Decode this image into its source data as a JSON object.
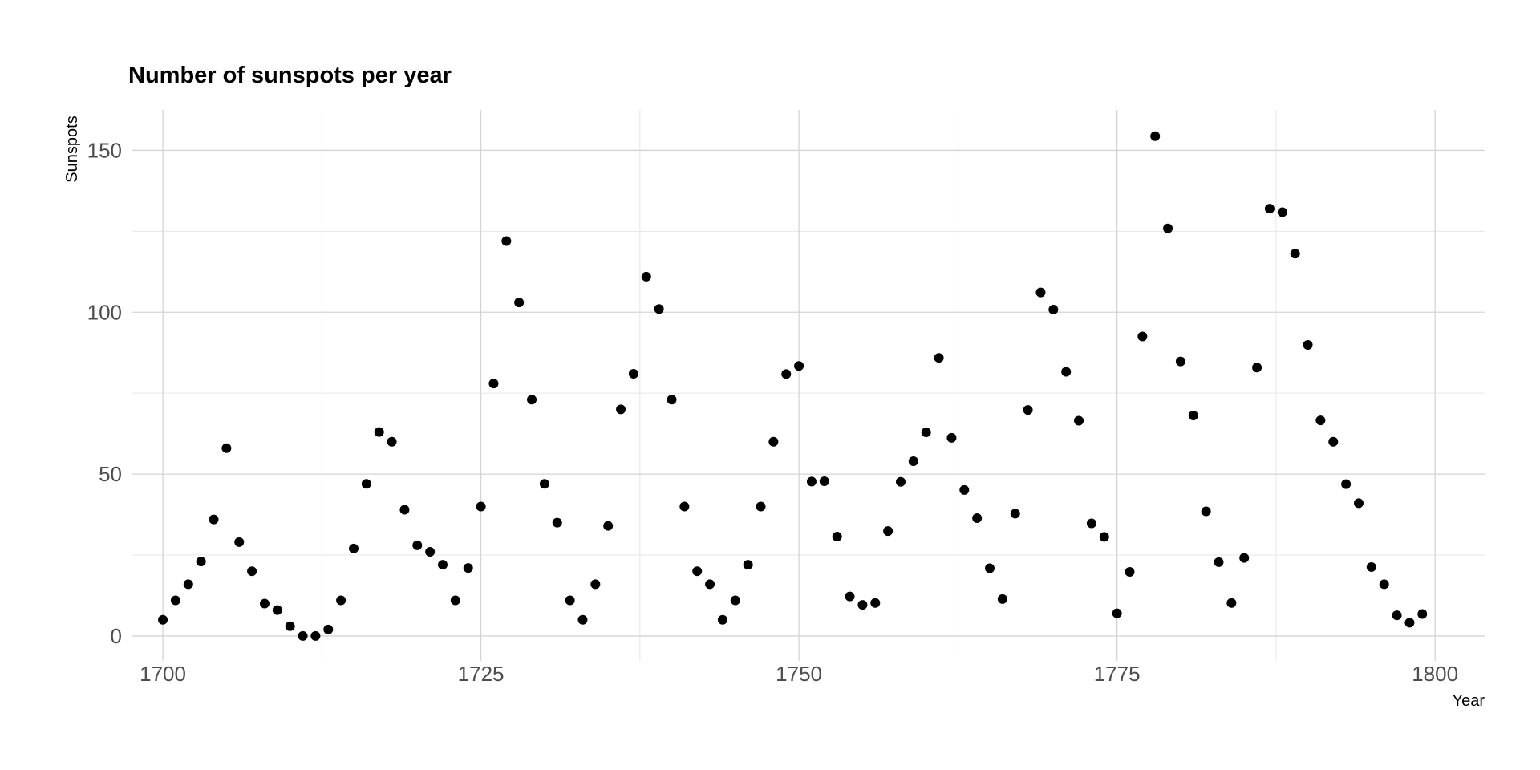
{
  "chart_data": {
    "type": "scatter",
    "title": "Number of sunspots per year",
    "xlabel": "Year",
    "ylabel": "Sunspots",
    "xlim": [
      1697.6,
      1803.9
    ],
    "ylim": [
      -7.7,
      162.5
    ],
    "xticks": [
      1700,
      1725,
      1750,
      1775,
      1800
    ],
    "xtick_labels": [
      "1700",
      "1725",
      "1750",
      "1775",
      "1800"
    ],
    "yticks": [
      0,
      50,
      100,
      150
    ],
    "ytick_labels": [
      "0",
      "50",
      "100",
      "150"
    ],
    "grid": true,
    "legend": "none",
    "point_color": "#000000",
    "x": [
      1700,
      1701,
      1702,
      1703,
      1704,
      1705,
      1706,
      1707,
      1708,
      1709,
      1710,
      1711,
      1712,
      1713,
      1714,
      1715,
      1716,
      1717,
      1718,
      1719,
      1720,
      1721,
      1722,
      1723,
      1724,
      1725,
      1726,
      1727,
      1728,
      1729,
      1730,
      1731,
      1732,
      1733,
      1734,
      1735,
      1736,
      1737,
      1738,
      1739,
      1740,
      1741,
      1742,
      1743,
      1744,
      1745,
      1746,
      1747,
      1748,
      1749,
      1750,
      1751,
      1752,
      1753,
      1754,
      1755,
      1756,
      1757,
      1758,
      1759,
      1760,
      1761,
      1762,
      1763,
      1764,
      1765,
      1766,
      1767,
      1768,
      1769,
      1770,
      1771,
      1772,
      1773,
      1774,
      1775,
      1776,
      1777,
      1778,
      1779,
      1780,
      1781,
      1782,
      1783,
      1784,
      1785,
      1786,
      1787,
      1788,
      1789,
      1790,
      1791,
      1792,
      1793,
      1794,
      1795,
      1796,
      1797,
      1798,
      1799
    ],
    "y": [
      5,
      11,
      16,
      23,
      36,
      58,
      29,
      20,
      10,
      8,
      3,
      0,
      0,
      2,
      11,
      27,
      47,
      63,
      60,
      39,
      28,
      26,
      22,
      11,
      21,
      40,
      78,
      122,
      103,
      73,
      47,
      35,
      11,
      5,
      16,
      34,
      70,
      81,
      111,
      101,
      73,
      40,
      20,
      16,
      5,
      11,
      22,
      40,
      60,
      80.9,
      83.4,
      47.7,
      47.8,
      30.7,
      12.2,
      9.6,
      10.2,
      32.4,
      47.6,
      54,
      62.9,
      85.9,
      61.2,
      45.1,
      36.4,
      20.9,
      11.4,
      37.8,
      69.8,
      106.1,
      100.8,
      81.6,
      66.5,
      34.8,
      30.6,
      7,
      19.8,
      92.5,
      154.4,
      125.9,
      84.8,
      68.1,
      38.5,
      22.8,
      10.2,
      24.1,
      82.9,
      132,
      130.9,
      118.1,
      89.9,
      66.6,
      60,
      46.9,
      41,
      21.3,
      16,
      6.4,
      4.1,
      6.8
    ]
  }
}
